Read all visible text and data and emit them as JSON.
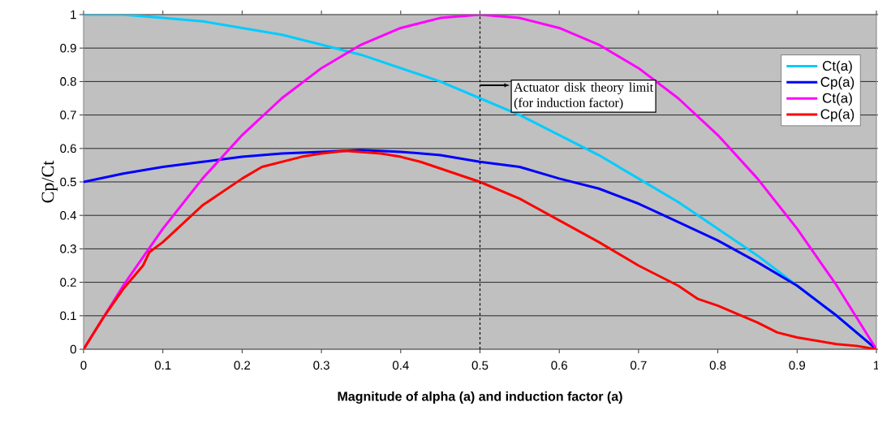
{
  "chart_data": {
    "type": "line",
    "xlabel": "Magnitude of alpha (a) and induction factor (a)",
    "ylabel": "Cp/Ct",
    "x": [
      0,
      0.05,
      0.1,
      0.15,
      0.2,
      0.25,
      0.3,
      0.35,
      0.4,
      0.45,
      0.5,
      0.55,
      0.6,
      0.65,
      0.7,
      0.75,
      0.8,
      0.85,
      0.9,
      0.95,
      1
    ],
    "series": [
      {
        "name": "Ct(a)",
        "color": "#00ccff",
        "values": [
          1,
          1,
          0.99,
          0.98,
          0.96,
          0.94,
          0.91,
          0.88,
          0.84,
          0.8,
          0.75,
          0.7,
          0.64,
          0.58,
          0.51,
          0.44,
          0.36,
          0.28,
          0.19,
          0.1,
          0
        ]
      },
      {
        "name": "Cp(a)",
        "color": "#0000ff",
        "values": [
          0.5,
          0.525,
          0.545,
          0.56,
          0.575,
          0.585,
          0.59,
          0.595,
          0.59,
          0.58,
          0.56,
          0.545,
          0.51,
          0.48,
          0.435,
          0.38,
          0.325,
          0.26,
          0.19,
          0.1,
          0
        ]
      },
      {
        "name": "Ct(a)",
        "color": "#ff00ff",
        "values": [
          0,
          0.19,
          0.36,
          0.51,
          0.64,
          0.75,
          0.84,
          0.91,
          0.96,
          0.99,
          1,
          0.99,
          0.96,
          0.91,
          0.84,
          0.75,
          0.64,
          0.51,
          0.36,
          0.19,
          0
        ]
      },
      {
        "name": "Cp(a)",
        "color": "#ff0000",
        "x": [
          0,
          0.025,
          0.05,
          0.075,
          0.083,
          0.1,
          0.15,
          0.2,
          0.225,
          0.25,
          0.275,
          0.3,
          0.33,
          0.375,
          0.4,
          0.425,
          0.45,
          0.475,
          0.5,
          0.55,
          0.6,
          0.65,
          0.7,
          0.75,
          0.775,
          0.8,
          0.85,
          0.875,
          0.9,
          0.95,
          0.975,
          1
        ],
        "values": [
          0,
          0.095,
          0.18,
          0.25,
          0.29,
          0.32,
          0.43,
          0.51,
          0.545,
          0.56,
          0.575,
          0.585,
          0.593,
          0.585,
          0.575,
          0.56,
          0.54,
          0.52,
          0.5,
          0.45,
          0.385,
          0.32,
          0.25,
          0.19,
          0.15,
          0.13,
          0.08,
          0.05,
          0.035,
          0.015,
          0.01,
          0
        ]
      }
    ],
    "xlim": [
      0,
      1
    ],
    "ylim": [
      0,
      1
    ],
    "xticks": [
      0,
      0.1,
      0.2,
      0.3,
      0.4,
      0.5,
      0.6,
      0.7,
      0.8,
      0.9,
      1
    ],
    "yticks": [
      0,
      0.1,
      0.2,
      0.3,
      0.4,
      0.5,
      0.6,
      0.7,
      0.8,
      0.9,
      1
    ],
    "grid": "y",
    "legend": "right",
    "marker": "none",
    "line_style": "solid",
    "ref_lines": [
      {
        "axis": "x",
        "value": 0.5,
        "label": "Actuator disk theory limit (for induction factor)",
        "color": "#000000",
        "line_style": "dashed"
      }
    ]
  }
}
